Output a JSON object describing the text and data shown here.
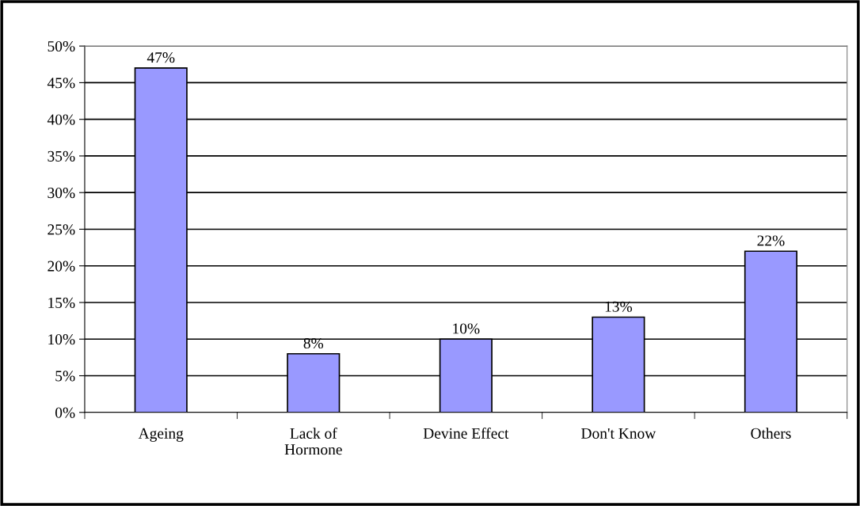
{
  "chart_data": {
    "type": "bar",
    "categories": [
      "Ageing",
      "Lack of\nHormone",
      "Devine Effect",
      "Don't Know",
      "Others"
    ],
    "values": [
      47,
      8,
      10,
      13,
      22
    ],
    "value_labels": [
      "47%",
      "8%",
      "10%",
      "13%",
      "22%"
    ],
    "color": "#9999ff",
    "ylim": [
      0,
      50
    ],
    "yticks": [
      {
        "value": 0,
        "label": "0%"
      },
      {
        "value": 5,
        "label": "5%"
      },
      {
        "value": 10,
        "label": "10%"
      },
      {
        "value": 15,
        "label": "15%"
      },
      {
        "value": 20,
        "label": "20%"
      },
      {
        "value": 25,
        "label": "25%"
      },
      {
        "value": 30,
        "label": "30%"
      },
      {
        "value": 35,
        "label": "35%"
      },
      {
        "value": 40,
        "label": "40%"
      },
      {
        "value": 45,
        "label": "45%"
      },
      {
        "value": 50,
        "label": "50%"
      }
    ],
    "grid": "y",
    "legend": false
  }
}
